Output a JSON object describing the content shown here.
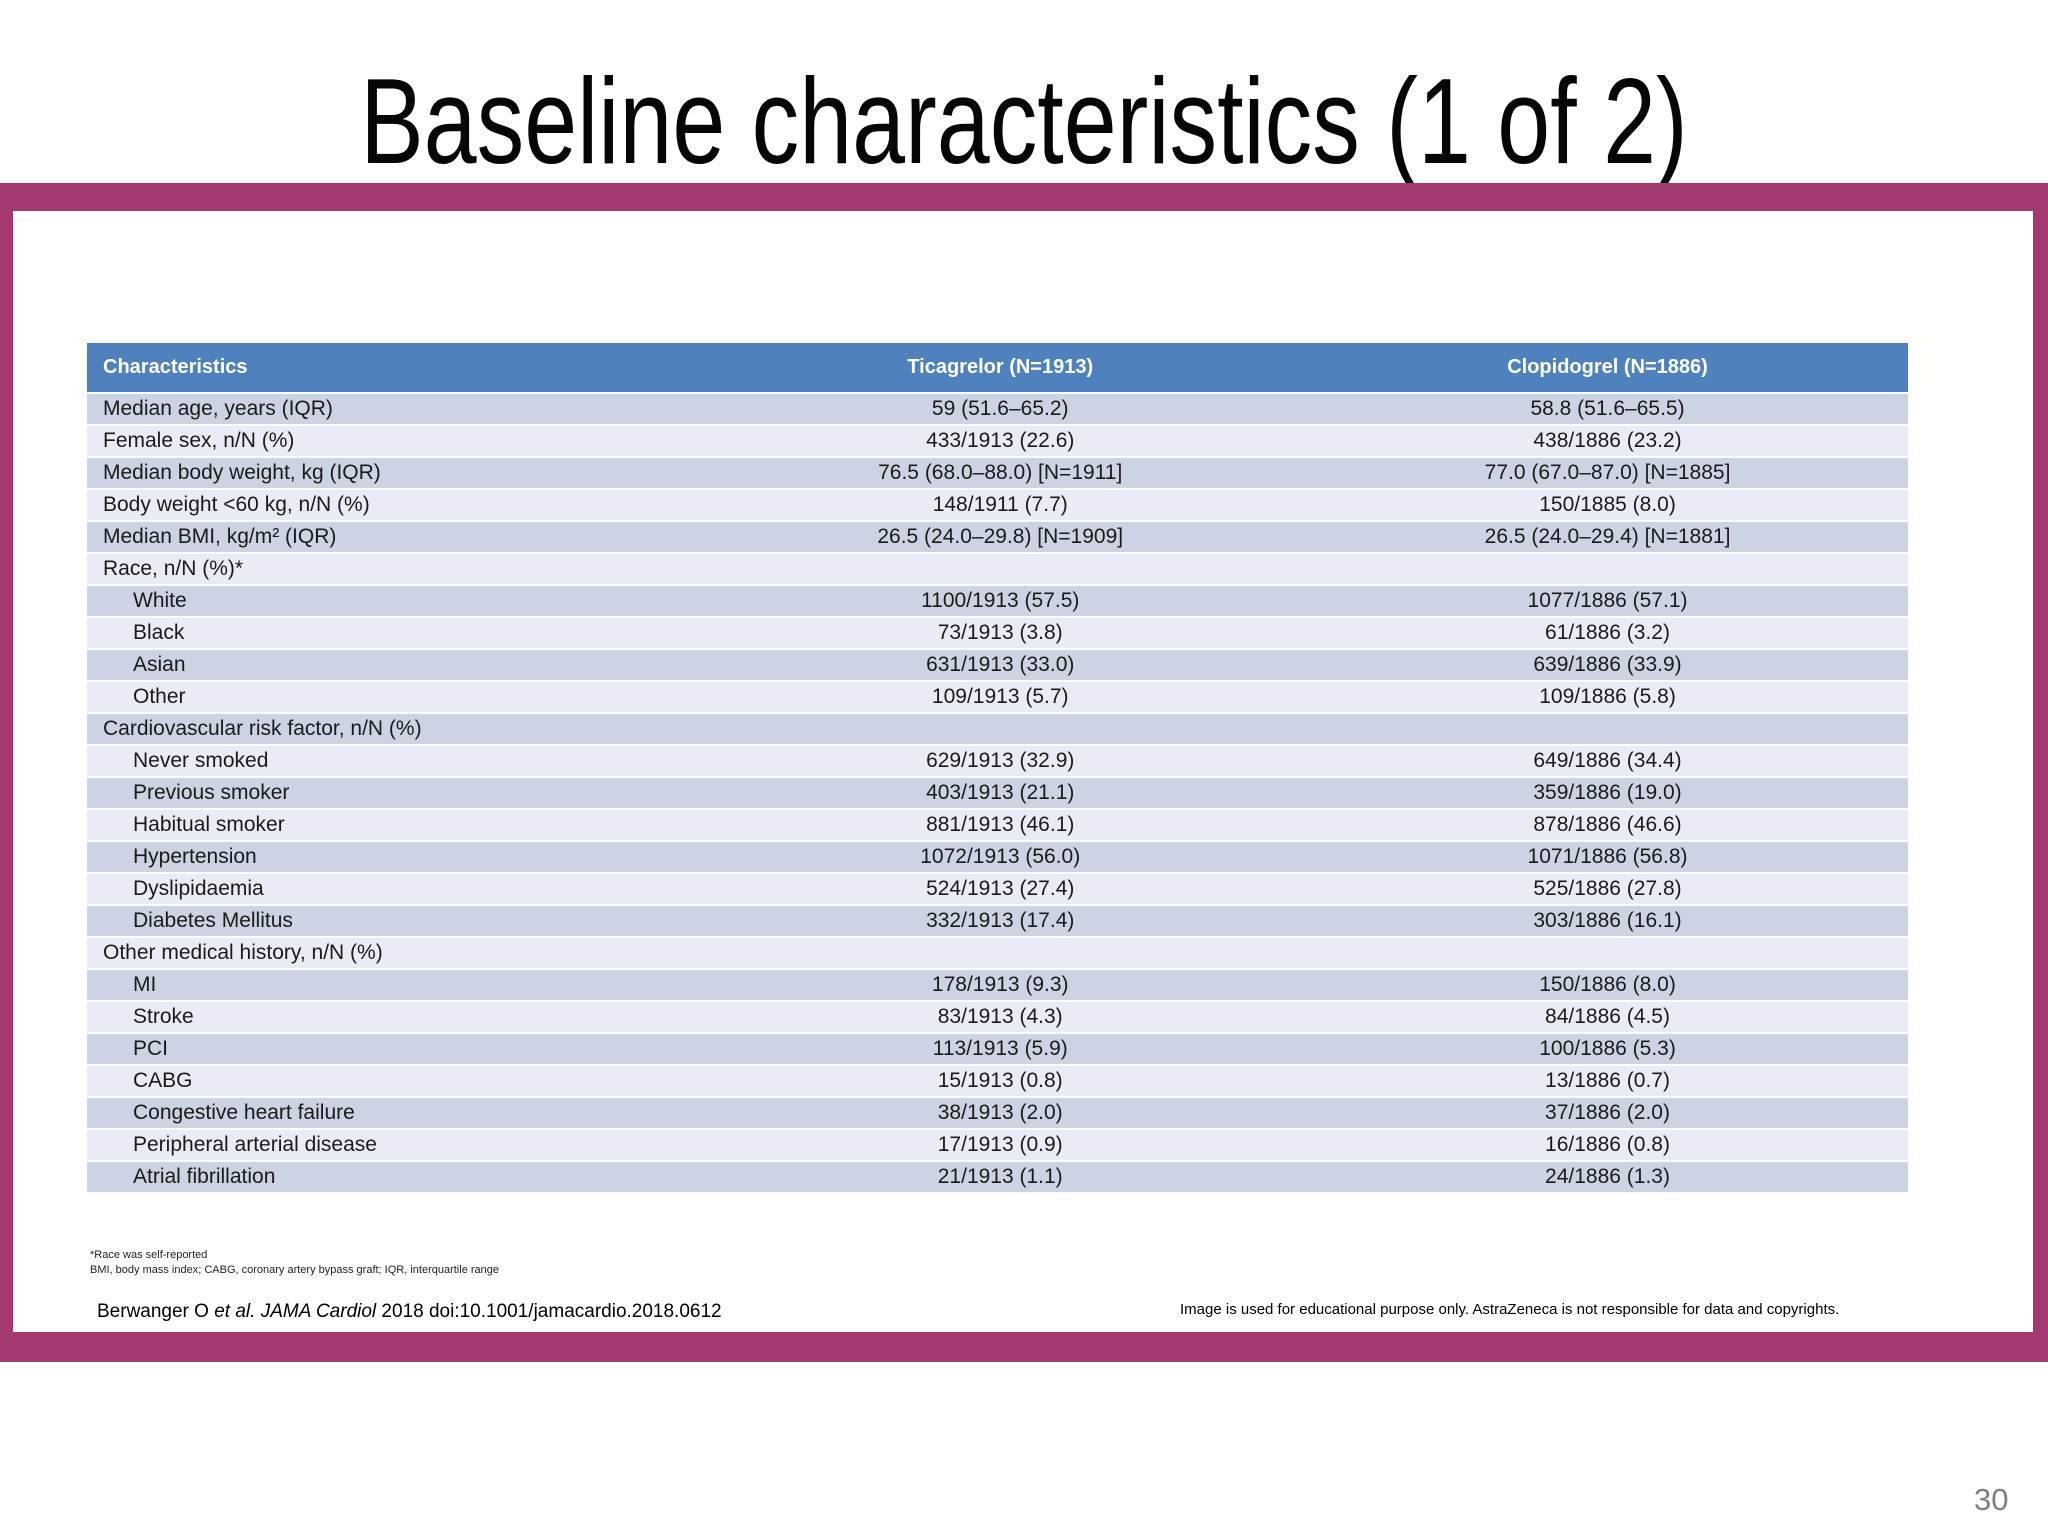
{
  "slide": {
    "title": "Baseline characteristics (1 of 2)",
    "page_number": "30"
  },
  "colors": {
    "frame_purple": "#a23a70",
    "header_blue": "#4f81bd",
    "stripe_dark": "#ccd3e2",
    "stripe_light": "#e9ecf4",
    "page_number_gray": "#7f7f7f"
  },
  "table": {
    "columns": [
      "Characteristics",
      "Ticagrelor (N=1913)",
      "Clopidogrel (N=1886)"
    ],
    "rows": [
      {
        "label": "Median age, years (IQR)",
        "indent": 0,
        "ticagrelor": "59 (51.6–65.2)",
        "clopidogrel": "58.8 (51.6–65.5)"
      },
      {
        "label": "Female sex, n/N (%)",
        "indent": 0,
        "ticagrelor": "433/1913 (22.6)",
        "clopidogrel": "438/1886 (23.2)"
      },
      {
        "label": "Median body weight, kg (IQR)",
        "indent": 0,
        "ticagrelor": "76.5 (68.0–88.0) [N=1911]",
        "clopidogrel": "77.0 (67.0–87.0) [N=1885]"
      },
      {
        "label": "Body weight <60 kg, n/N (%)",
        "indent": 0,
        "ticagrelor": "148/1911 (7.7)",
        "clopidogrel": "150/1885 (8.0)"
      },
      {
        "label": "Median BMI, kg/m² (IQR)",
        "indent": 0,
        "ticagrelor": "26.5 (24.0–29.8) [N=1909]",
        "clopidogrel": "26.5 (24.0–29.4) [N=1881]"
      },
      {
        "label": "Race, n/N (%)*",
        "indent": 0,
        "ticagrelor": "",
        "clopidogrel": ""
      },
      {
        "label": "White",
        "indent": 1,
        "ticagrelor": "1100/1913 (57.5)",
        "clopidogrel": "1077/1886 (57.1)"
      },
      {
        "label": "Black",
        "indent": 1,
        "ticagrelor": "73/1913 (3.8)",
        "clopidogrel": "61/1886 (3.2)"
      },
      {
        "label": "Asian",
        "indent": 1,
        "ticagrelor": "631/1913 (33.0)",
        "clopidogrel": "639/1886 (33.9)"
      },
      {
        "label": "Other",
        "indent": 1,
        "ticagrelor": "109/1913 (5.7)",
        "clopidogrel": "109/1886 (5.8)"
      },
      {
        "label": "Cardiovascular risk factor, n/N (%)",
        "indent": 0,
        "ticagrelor": "",
        "clopidogrel": ""
      },
      {
        "label": "Never smoked",
        "indent": 1,
        "ticagrelor": "629/1913 (32.9)",
        "clopidogrel": "649/1886 (34.4)"
      },
      {
        "label": "Previous smoker",
        "indent": 1,
        "ticagrelor": "403/1913 (21.1)",
        "clopidogrel": "359/1886 (19.0)"
      },
      {
        "label": "Habitual smoker",
        "indent": 1,
        "ticagrelor": "881/1913 (46.1)",
        "clopidogrel": "878/1886 (46.6)"
      },
      {
        "label": "Hypertension",
        "indent": 1,
        "ticagrelor": "1072/1913 (56.0)",
        "clopidogrel": "1071/1886 (56.8)"
      },
      {
        "label": "Dyslipidaemia",
        "indent": 1,
        "ticagrelor": "524/1913 (27.4)",
        "clopidogrel": "525/1886 (27.8)"
      },
      {
        "label": "Diabetes Mellitus",
        "indent": 1,
        "ticagrelor": "332/1913 (17.4)",
        "clopidogrel": "303/1886 (16.1)"
      },
      {
        "label": "Other medical history, n/N (%)",
        "indent": 0,
        "ticagrelor": "",
        "clopidogrel": ""
      },
      {
        "label": "MI",
        "indent": 1,
        "ticagrelor": "178/1913 (9.3)",
        "clopidogrel": "150/1886 (8.0)"
      },
      {
        "label": "Stroke",
        "indent": 1,
        "ticagrelor": "83/1913 (4.3)",
        "clopidogrel": "84/1886 (4.5)"
      },
      {
        "label": "PCI",
        "indent": 1,
        "ticagrelor": "113/1913 (5.9)",
        "clopidogrel": "100/1886 (5.3)"
      },
      {
        "label": "CABG",
        "indent": 1,
        "ticagrelor": "15/1913 (0.8)",
        "clopidogrel": "13/1886 (0.7)"
      },
      {
        "label": "Congestive heart failure",
        "indent": 1,
        "ticagrelor": "38/1913 (2.0)",
        "clopidogrel": "37/1886 (2.0)"
      },
      {
        "label": "Peripheral arterial disease",
        "indent": 1,
        "ticagrelor": "17/1913 (0.9)",
        "clopidogrel": "16/1886 (0.8)"
      },
      {
        "label": "Atrial fibrillation",
        "indent": 1,
        "ticagrelor": "21/1913 (1.1)",
        "clopidogrel": "24/1886 (1.3)"
      }
    ]
  },
  "footnotes": {
    "race": "*Race was self-reported",
    "abbreviations": "BMI, body mass index; CABG, coronary artery bypass graft; IQR, interquartile range"
  },
  "citation": {
    "prefix": "Berwanger O ",
    "italic": "et al. JAMA Cardiol",
    "suffix": " 2018 doi:10.1001/jamacardio.2018.0612"
  },
  "disclaimer": "Image is used for educational purpose only. AstraZeneca is not responsible for data and copyrights."
}
